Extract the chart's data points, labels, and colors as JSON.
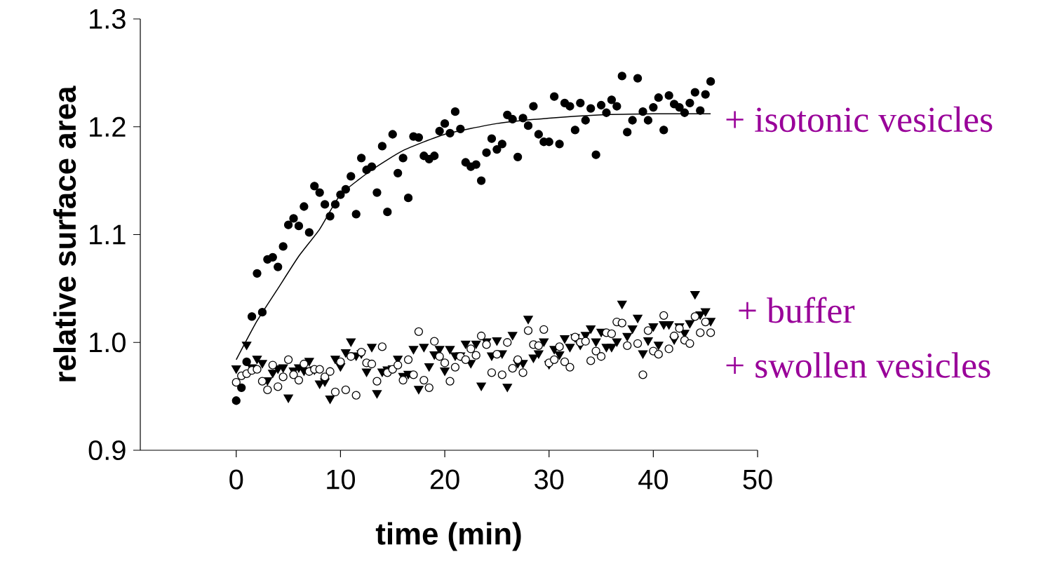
{
  "chart_data": {
    "type": "scatter",
    "xlabel": "time (min)",
    "ylabel": "relative surface area",
    "x": [
      0,
      0.5,
      1,
      1.5,
      2,
      2.5,
      3,
      3.5,
      4,
      4.5,
      5,
      5.5,
      6,
      6.5,
      7,
      7.5,
      8,
      8.5,
      9,
      9.5,
      10,
      10.5,
      11,
      11.5,
      12,
      12.5,
      13,
      13.5,
      14,
      14.5,
      15,
      15.5,
      16,
      16.5,
      17,
      17.5,
      18,
      18.5,
      19,
      19.5,
      20,
      20.5,
      21,
      21.5,
      22,
      22.5,
      23,
      23.5,
      24,
      24.5,
      25,
      25.5,
      26,
      26.5,
      27,
      27.5,
      28,
      28.5,
      29,
      29.5,
      30,
      30.5,
      31,
      31.5,
      32,
      32.5,
      33,
      33.5,
      34,
      34.5,
      35,
      35.5,
      36,
      36.5,
      37,
      37.5,
      38,
      38.5,
      39,
      39.5,
      40,
      40.5,
      41,
      41.5,
      42,
      42.5,
      43,
      43.5,
      44,
      44.5,
      45,
      45.5
    ],
    "series": [
      {
        "name": "+ isotonic vesicles",
        "color": "#000000",
        "marker": "circle",
        "values": [
          0.946,
          0.958,
          0.982,
          1.024,
          1.064,
          1.028,
          1.077,
          1.079,
          1.07,
          1.089,
          1.109,
          1.115,
          1.108,
          1.126,
          1.102,
          1.145,
          1.139,
          1.128,
          1.117,
          1.128,
          1.137,
          1.142,
          1.154,
          1.119,
          1.171,
          1.16,
          1.163,
          1.139,
          1.182,
          1.121,
          1.193,
          1.157,
          1.171,
          1.134,
          1.191,
          1.19,
          1.173,
          1.17,
          1.173,
          1.196,
          1.203,
          1.194,
          1.214,
          1.198,
          1.167,
          1.163,
          1.165,
          1.15,
          1.176,
          1.189,
          1.179,
          1.184,
          1.211,
          1.207,
          1.172,
          1.208,
          1.201,
          1.219,
          1.193,
          1.186,
          1.186,
          1.228,
          1.184,
          1.222,
          1.219,
          1.197,
          1.222,
          1.206,
          1.217,
          1.174,
          1.22,
          1.213,
          1.225,
          1.219,
          1.247,
          1.195,
          1.206,
          1.245,
          1.214,
          1.206,
          1.218,
          1.227,
          1.197,
          1.229,
          1.221,
          1.218,
          1.213,
          1.222,
          1.232,
          1.215,
          1.23,
          1.242
        ]
      },
      {
        "name": "+ buffer",
        "color": "#000000",
        "marker": "triangle",
        "values": [
          0.976,
          null,
          0.998,
          0.977,
          0.985,
          0.981,
          0.965,
          0.972,
          0.976,
          0.977,
          0.949,
          0.974,
          0.977,
          0.974,
          0.983,
          0.975,
          0.962,
          0.964,
          0.948,
          0.985,
          0.978,
          0.991,
          1.001,
          0.988,
          0.99,
          0.973,
          0.996,
          0.953,
          0.973,
          0.975,
          0.976,
          0.985,
          0.969,
          0.971,
          0.994,
          0.957,
          0.996,
          0.978,
          0.989,
          0.994,
          0.974,
          0.994,
          0.988,
          0.988,
          0.999,
          0.981,
          0.999,
          0.96,
          1.001,
          0.988,
          1.002,
          0.99,
          0.959,
          1.007,
          0.981,
          0.981,
          1.022,
          0.986,
          0.99,
          1.001,
          0.98,
          0.994,
          0.989,
          1.004,
          0.996,
          1.005,
          0.998,
          1.007,
          1.013,
          1.001,
          1.01,
          0.996,
          0.996,
          1.001,
          1.036,
          1.006,
          1.013,
          1.023,
          0.99,
          1.002,
          1.015,
          0.998,
          1.017,
          1.017,
          1.003,
          1.015,
          1.009,
          1.018,
          1.045,
          1.026,
          1.029,
          1.02
        ]
      },
      {
        "name": "+ swollen vesicles",
        "color": "#000000",
        "marker": "circle",
        "values": [
          0.963,
          0.969,
          0.971,
          0.974,
          0.975,
          0.964,
          0.956,
          0.979,
          0.959,
          0.968,
          0.984,
          0.97,
          0.965,
          0.98,
          0.973,
          0.975,
          0.975,
          0.968,
          0.973,
          0.954,
          0.982,
          0.956,
          0.987,
          0.951,
          0.991,
          0.981,
          0.98,
          0.964,
          0.996,
          0.972,
          0.975,
          0.979,
          0.965,
          0.984,
          0.97,
          1.01,
          0.965,
          0.958,
          1.001,
          0.987,
          0.981,
          0.964,
          0.977,
          0.987,
          0.984,
          0.994,
          0.988,
          1.006,
          0.998,
          0.972,
          0.989,
          0.97,
          1.0,
          0.976,
          0.984,
          0.972,
          1.011,
          0.998,
          0.997,
          1.012,
          0.981,
          0.984,
          0.996,
          0.982,
          0.977,
          1.005,
          1.0,
          1.001,
          0.983,
          0.992,
          0.987,
          1.009,
          1.008,
          1.019,
          1.018,
          0.997,
          null,
          0.999,
          0.97,
          1.011,
          0.992,
          0.989,
          1.025,
          0.994,
          1.006,
          1.013,
          1.002,
          0.999,
          1.024,
          1.009,
          1.019,
          1.009
        ]
      },
      {
        "type": "line",
        "color": "#000000",
        "marker": "none",
        "line_style": "solid",
        "x": [
          0,
          2,
          4,
          6,
          8,
          10,
          13,
          16,
          20,
          25,
          30,
          35,
          40,
          45.5
        ],
        "values": [
          0.984,
          1.02,
          1.05,
          1.08,
          1.105,
          1.137,
          1.16,
          1.178,
          1.193,
          1.203,
          1.208,
          1.211,
          1.212,
          1.212
        ]
      }
    ],
    "xlim": [
      -9.2,
      50
    ],
    "xticks": [
      0,
      10,
      20,
      30,
      40,
      50
    ],
    "ylim": [
      0.9,
      1.3
    ],
    "yticks": [
      {
        "value": 0.9,
        "label": "0.9"
      },
      {
        "value": 1.0,
        "label": "1.0"
      },
      {
        "value": 1.1,
        "label": "1.1"
      },
      {
        "value": 1.2,
        "label": "1.2"
      },
      {
        "value": 1.3,
        "label": "1.3"
      }
    ],
    "grid": false
  }
}
